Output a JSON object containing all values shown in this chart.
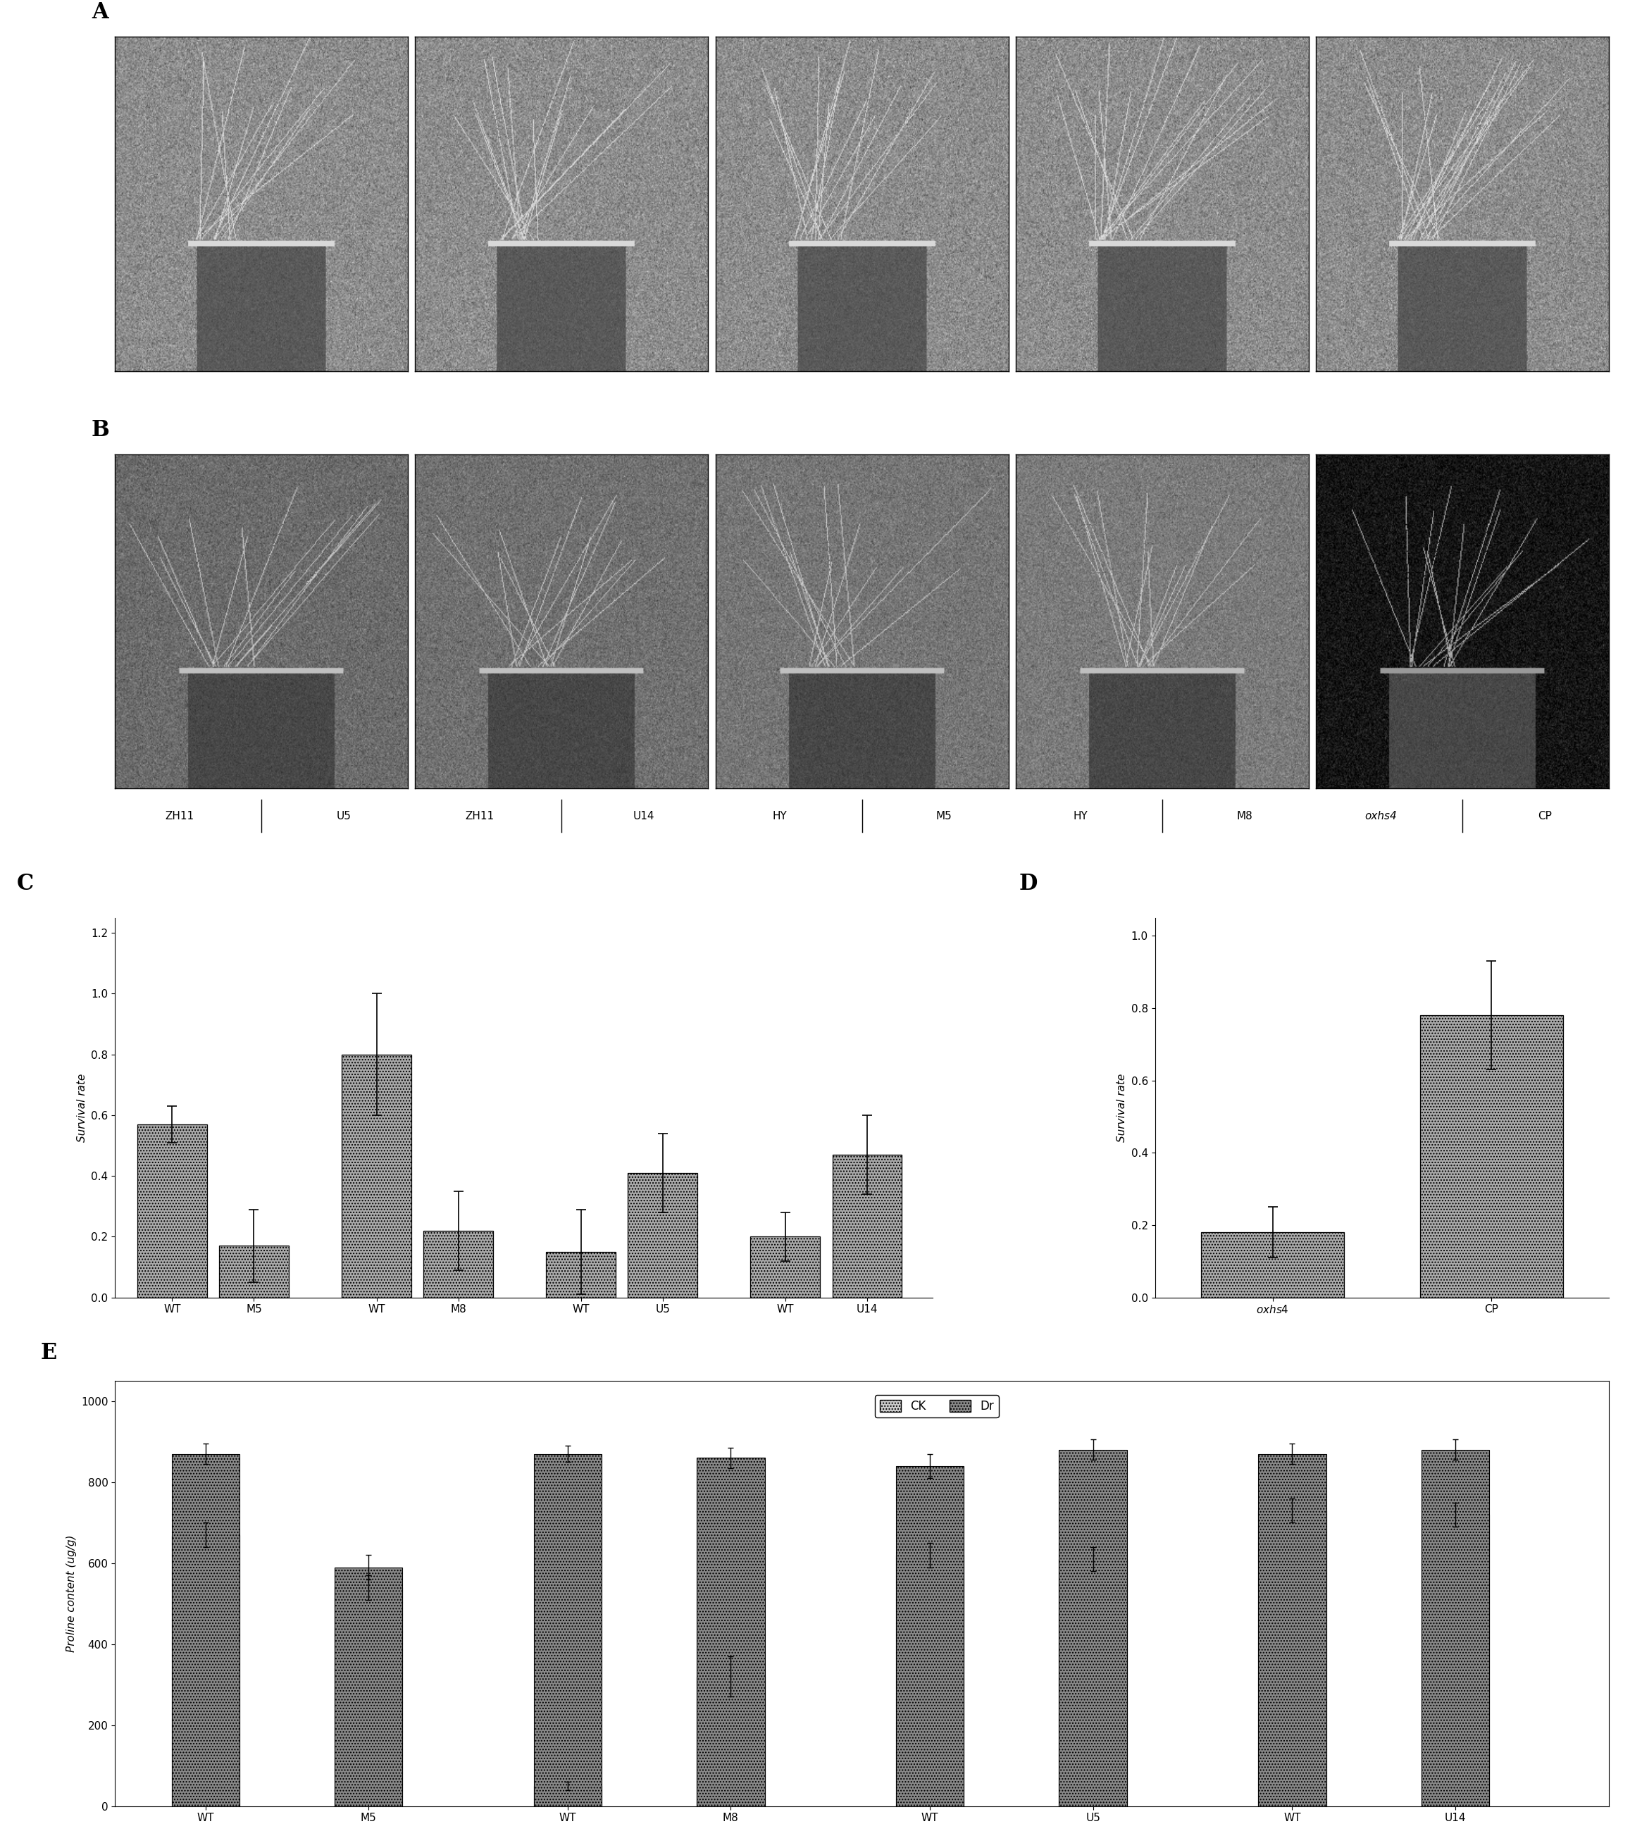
{
  "panel_labels": [
    "A",
    "B",
    "C",
    "D",
    "E"
  ],
  "photo_labels_row": [
    "ZH11",
    "U5",
    "ZH11",
    "U14",
    "HY",
    "M5",
    "HY",
    "M8",
    "oxhs4",
    "CP"
  ],
  "C_categories": [
    "WT",
    "M5",
    "WT",
    "M8",
    "WT",
    "U5",
    "WT",
    "U14"
  ],
  "C_values": [
    0.57,
    0.17,
    0.8,
    0.22,
    0.15,
    0.41,
    0.2,
    0.47
  ],
  "C_errors": [
    0.06,
    0.12,
    0.2,
    0.13,
    0.14,
    0.13,
    0.08,
    0.13
  ],
  "C_ylabel": "Survival rate",
  "C_ylim": [
    0,
    1.25
  ],
  "C_yticks": [
    0.0,
    0.2,
    0.4,
    0.6,
    0.8,
    1.0,
    1.2
  ],
  "D_categories": [
    "oxhs4",
    "CP"
  ],
  "D_values": [
    0.18,
    0.78
  ],
  "D_errors": [
    0.07,
    0.15
  ],
  "D_ylabel": "Survival rate",
  "D_ylim": [
    0.0,
    1.05
  ],
  "D_yticks": [
    0.0,
    0.2,
    0.4,
    0.6,
    0.8,
    1.0
  ],
  "E_group_labels": [
    "WT",
    "M5",
    "WT",
    "M8",
    "WT",
    "U5",
    "WT",
    "U14"
  ],
  "E_CK_values": [
    670,
    540,
    50,
    320,
    620,
    610,
    730,
    720
  ],
  "E_CK_errors": [
    30,
    30,
    10,
    50,
    30,
    30,
    30,
    30
  ],
  "E_Dr_values": [
    870,
    590,
    870,
    860,
    840,
    880,
    870,
    880
  ],
  "E_Dr_errors": [
    25,
    30,
    20,
    25,
    30,
    25,
    25,
    25
  ],
  "E_ylabel": "Proline content (ug/g)",
  "E_ylim": [
    0,
    1050
  ],
  "E_yticks": [
    0,
    200,
    400,
    600,
    800,
    1000
  ],
  "E_legend_CK": "CK",
  "E_legend_Dr": "Dr",
  "background_color": "#ffffff"
}
